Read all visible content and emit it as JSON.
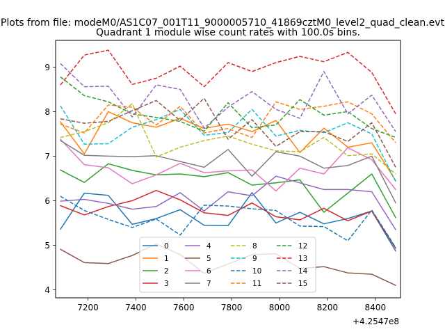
{
  "suptitle": "Plots from file: modeM0/AS1C07_001T11_9000005710_41869cztM0_level2_quad_clean.evt",
  "chart_data": {
    "type": "line",
    "title": "Quadrant 1 module wise count rates with 100.0s bins.",
    "xlabel": "",
    "ylabel": "",
    "x_offset_label": "+4.2547e8",
    "x": [
      7085,
      7185,
      7285,
      7385,
      7485,
      7585,
      7685,
      7785,
      7885,
      7985,
      8085,
      8185,
      8285,
      8385,
      8485
    ],
    "xlim": [
      7065,
      8505
    ],
    "ylim": [
      3.82,
      9.6
    ],
    "x_ticks": [
      7200,
      7400,
      7600,
      7800,
      8000,
      8200,
      8400
    ],
    "y_ticks": [
      4,
      5,
      6,
      7,
      8,
      9
    ],
    "grid": false,
    "legend_position": "bottom-center",
    "series": [
      {
        "name": "0",
        "color": "#1f77b4",
        "dash": "solid",
        "values": [
          5.36,
          6.17,
          6.12,
          5.47,
          5.6,
          5.8,
          5.45,
          5.44,
          6.18,
          5.5,
          5.74,
          5.48,
          5.6,
          5.77,
          4.87
        ]
      },
      {
        "name": "1",
        "color": "#ff7f0e",
        "dash": "solid",
        "values": [
          7.77,
          7.05,
          8.0,
          7.75,
          7.65,
          7.85,
          7.62,
          7.72,
          7.55,
          7.8,
          7.08,
          7.63,
          7.2,
          7.3,
          6.45
        ]
      },
      {
        "name": "2",
        "color": "#2ca02c",
        "dash": "solid",
        "values": [
          6.69,
          6.41,
          6.83,
          6.68,
          6.58,
          6.6,
          6.54,
          6.63,
          6.35,
          6.4,
          6.47,
          5.74,
          6.17,
          6.6,
          5.62
        ]
      },
      {
        "name": "3",
        "color": "#d62728",
        "dash": "solid",
        "values": [
          5.89,
          5.68,
          5.87,
          6.0,
          6.23,
          6.02,
          5.73,
          5.67,
          5.95,
          5.64,
          5.57,
          5.83,
          5.55,
          5.77,
          4.93
        ]
      },
      {
        "name": "4",
        "color": "#9467bd",
        "dash": "solid",
        "values": [
          5.99,
          6.03,
          5.94,
          5.81,
          5.87,
          6.18,
          5.77,
          6.2,
          6.11,
          6.55,
          6.4,
          6.25,
          6.25,
          6.2,
          5.35
        ]
      },
      {
        "name": "5",
        "color": "#8c564b",
        "dash": "solid",
        "values": [
          4.91,
          4.61,
          4.59,
          4.77,
          5.03,
          4.79,
          4.37,
          4.58,
          4.79,
          4.81,
          4.48,
          4.52,
          4.38,
          4.35,
          4.1
        ]
      },
      {
        "name": "6",
        "color": "#e377c2",
        "dash": "solid",
        "values": [
          7.38,
          6.81,
          6.74,
          6.38,
          6.58,
          6.84,
          6.63,
          6.67,
          6.69,
          6.22,
          6.73,
          6.6,
          7.19,
          6.92,
          6.25
        ]
      },
      {
        "name": "7",
        "color": "#7f7f7f",
        "dash": "solid",
        "values": [
          7.35,
          7.02,
          7.0,
          6.99,
          7.01,
          6.88,
          6.75,
          7.15,
          6.55,
          7.1,
          7.0,
          6.73,
          6.79,
          7.0,
          5.95
        ]
      },
      {
        "name": "8",
        "color": "#bcbd22",
        "dash": "dashed",
        "values": [
          7.42,
          7.55,
          7.75,
          8.18,
          6.98,
          7.2,
          7.35,
          7.45,
          7.27,
          7.12,
          7.1,
          7.42,
          7.01,
          7.05,
          6.6
        ]
      },
      {
        "name": "9",
        "color": "#17becf",
        "dash": "dashed",
        "values": [
          8.13,
          7.27,
          7.28,
          7.65,
          7.82,
          8.05,
          7.47,
          7.53,
          8.05,
          7.45,
          7.58,
          7.53,
          7.75,
          7.5,
          6.43
        ]
      },
      {
        "name": "10",
        "color": "#1f77b4",
        "dash": "dashed",
        "values": [
          6.1,
          5.78,
          5.58,
          5.4,
          5.59,
          5.23,
          5.9,
          5.88,
          5.82,
          5.78,
          5.43,
          5.42,
          5.1,
          5.79,
          4.95
        ]
      },
      {
        "name": "11",
        "color": "#ff7f0e",
        "dash": "dashed",
        "values": [
          7.72,
          7.52,
          8.15,
          8.1,
          7.7,
          8.12,
          7.52,
          7.62,
          7.42,
          8.22,
          8.05,
          8.12,
          8.22,
          7.95,
          7.3
        ]
      },
      {
        "name": "12",
        "color": "#2ca02c",
        "dash": "dashed",
        "values": [
          8.78,
          8.36,
          8.22,
          7.95,
          7.87,
          7.78,
          7.56,
          8.2,
          7.64,
          7.7,
          8.27,
          7.92,
          8.0,
          7.62,
          7.42
        ]
      },
      {
        "name": "13",
        "color": "#d62728",
        "dash": "dashed",
        "values": [
          8.6,
          9.27,
          9.38,
          8.61,
          8.75,
          9.02,
          8.56,
          9.1,
          8.9,
          9.1,
          9.24,
          9.12,
          9.33,
          8.88,
          7.95
        ]
      },
      {
        "name": "14",
        "color": "#9467bd",
        "dash": "dashed",
        "values": [
          9.08,
          8.56,
          8.57,
          7.88,
          8.6,
          8.5,
          7.63,
          8.1,
          8.45,
          8.05,
          7.85,
          8.9,
          7.95,
          8.37,
          7.55
        ]
      },
      {
        "name": "15",
        "color": "#8c564b",
        "dash": "dashed",
        "values": [
          7.84,
          7.74,
          7.78,
          8.02,
          8.25,
          7.8,
          8.3,
          7.38,
          7.82,
          7.22,
          7.55,
          7.55,
          7.33,
          7.75,
          6.75
        ]
      }
    ]
  }
}
